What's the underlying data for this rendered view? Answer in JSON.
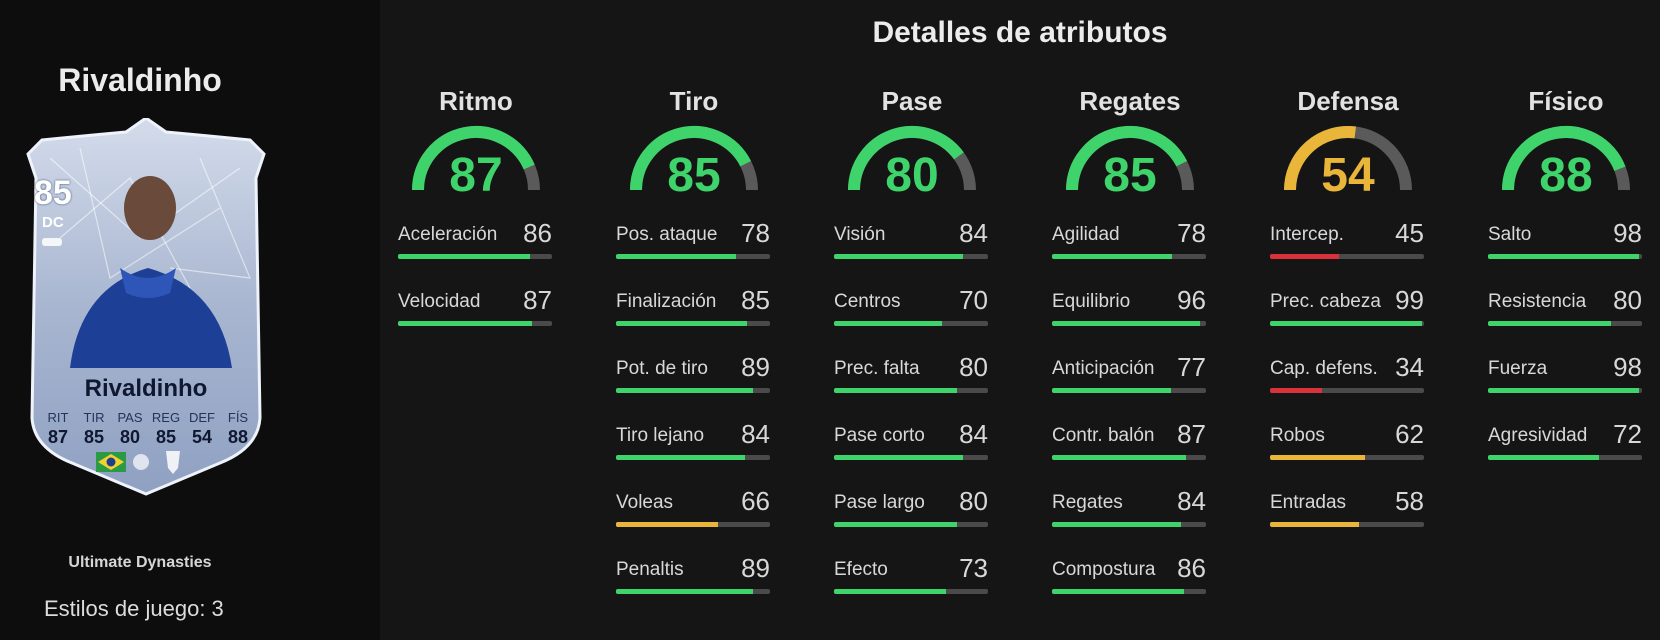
{
  "player": {
    "name_title": "Rivaldinho",
    "program": "Ultimate Dynasties",
    "playstyles": "Estilos de juego: 3"
  },
  "card": {
    "rating": "85",
    "position": "DC",
    "name": "Rivaldinho",
    "stat_labels": [
      "RIT",
      "TIR",
      "PAS",
      "REG",
      "DEF",
      "FÍS"
    ],
    "stat_values": [
      "87",
      "85",
      "80",
      "85",
      "54",
      "88"
    ]
  },
  "section_title": "Detalles de atributos",
  "colors": {
    "high": "#3fd46b",
    "mid": "#e9b63a",
    "low": "#d9323a",
    "track": "#4a4a4a",
    "gauge_track": "#5a5a5a"
  },
  "categories": [
    {
      "name": "Ritmo",
      "value": 87,
      "attributes": [
        {
          "label": "Aceleración",
          "value": 86
        },
        {
          "label": "Velocidad",
          "value": 87
        }
      ]
    },
    {
      "name": "Tiro",
      "value": 85,
      "attributes": [
        {
          "label": "Pos. ataque",
          "value": 78
        },
        {
          "label": "Finalización",
          "value": 85
        },
        {
          "label": "Pot. de tiro",
          "value": 89
        },
        {
          "label": "Tiro lejano",
          "value": 84
        },
        {
          "label": "Voleas",
          "value": 66
        },
        {
          "label": "Penaltis",
          "value": 89
        }
      ]
    },
    {
      "name": "Pase",
      "value": 80,
      "attributes": [
        {
          "label": "Visión",
          "value": 84
        },
        {
          "label": "Centros",
          "value": 70
        },
        {
          "label": "Prec. falta",
          "value": 80
        },
        {
          "label": "Pase corto",
          "value": 84
        },
        {
          "label": "Pase largo",
          "value": 80
        },
        {
          "label": "Efecto",
          "value": 73
        }
      ]
    },
    {
      "name": "Regates",
      "value": 85,
      "attributes": [
        {
          "label": "Agilidad",
          "value": 78
        },
        {
          "label": "Equilibrio",
          "value": 96
        },
        {
          "label": "Anticipación",
          "value": 77
        },
        {
          "label": "Contr. balón",
          "value": 87
        },
        {
          "label": "Regates",
          "value": 84
        },
        {
          "label": "Compostura",
          "value": 86
        }
      ]
    },
    {
      "name": "Defensa",
      "value": 54,
      "attributes": [
        {
          "label": "Intercep.",
          "value": 45
        },
        {
          "label": "Prec. cabeza",
          "value": 99
        },
        {
          "label": "Cap. defens.",
          "value": 34
        },
        {
          "label": "Robos",
          "value": 62
        },
        {
          "label": "Entradas",
          "value": 58
        }
      ]
    },
    {
      "name": "Físico",
      "value": 88,
      "attributes": [
        {
          "label": "Salto",
          "value": 98
        },
        {
          "label": "Resistencia",
          "value": 80
        },
        {
          "label": "Fuerza",
          "value": 98
        },
        {
          "label": "Agresividad",
          "value": 72
        }
      ]
    }
  ]
}
